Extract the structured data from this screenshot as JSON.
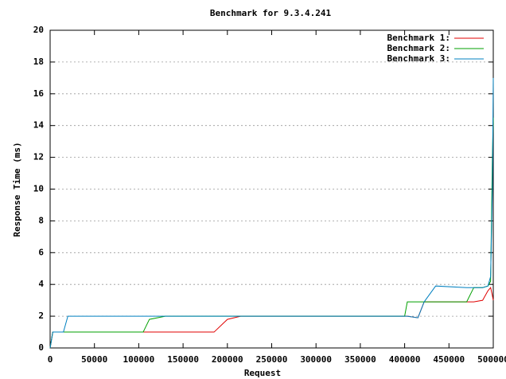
{
  "chart_data": {
    "type": "line",
    "title": "Benchmark for 9.3.4.241",
    "x_label": "Request",
    "y_label": "Response Time (ms)",
    "x": [
      0,
      3000,
      15000,
      20000,
      105000,
      112000,
      130000,
      185000,
      200000,
      215000,
      400000,
      403000,
      415000,
      422000,
      435000,
      470000,
      478000,
      488000,
      494000,
      497000,
      499000,
      500000
    ],
    "series": [
      {
        "name": "Benchmark 1:",
        "color": "#e00000",
        "values": [
          0,
          1,
          1,
          1,
          1,
          1,
          1,
          1,
          1.8,
          2,
          2,
          2,
          1.9,
          2.9,
          2.9,
          2.9,
          2.9,
          3,
          3.6,
          3.8,
          3.3,
          3
        ]
      },
      {
        "name": "Benchmark 2:",
        "color": "#00a000",
        "values": [
          0,
          1,
          1,
          1,
          1,
          1.8,
          2,
          2,
          2,
          2,
          2,
          2.9,
          2.9,
          2.9,
          2.9,
          2.9,
          3.8,
          3.8,
          3.9,
          4.2,
          12,
          14.5
        ]
      },
      {
        "name": "Benchmark 3:",
        "color": "#0080c0",
        "values": [
          0,
          1,
          1,
          2,
          2,
          2,
          2,
          2,
          2,
          2,
          2,
          2,
          1.9,
          2.9,
          3.9,
          3.8,
          3.8,
          3.8,
          3.9,
          4.5,
          10,
          17
        ]
      }
    ],
    "xlim": [
      0,
      500000
    ],
    "ylim": [
      0,
      20
    ],
    "xticks": [
      0,
      50000,
      100000,
      150000,
      200000,
      250000,
      300000,
      350000,
      400000,
      450000,
      500000
    ],
    "yticks": [
      0,
      2,
      4,
      6,
      8,
      10,
      12,
      14,
      16,
      18,
      20
    ],
    "grid": true,
    "legend": "top-right"
  }
}
